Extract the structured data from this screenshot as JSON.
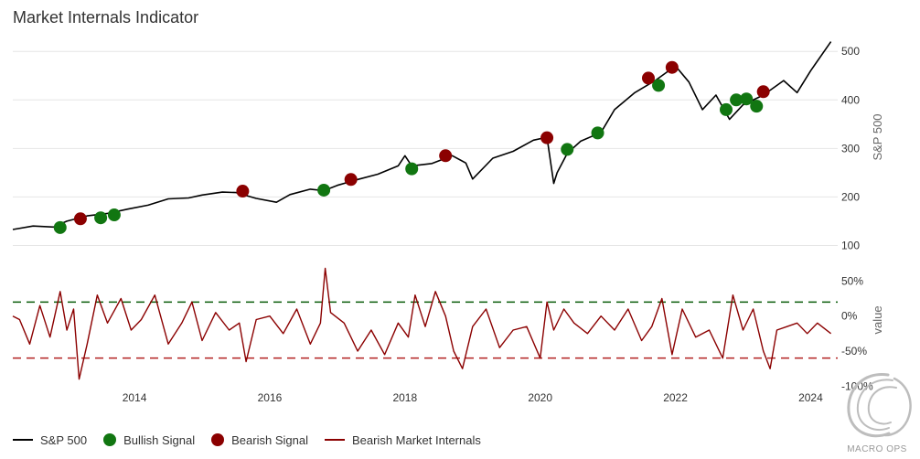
{
  "chart_data": {
    "type": "line",
    "title": "Market Internals Indicator",
    "x_axis": {
      "label": "",
      "range": [
        2012.2,
        2024.4
      ],
      "ticks": [
        "2014",
        "2016",
        "2018",
        "2020",
        "2022",
        "2024"
      ]
    },
    "panels": [
      {
        "name": "upper",
        "y_axis": {
          "label": "S&P 500",
          "range": [
            50,
            540
          ],
          "ticks": [
            "500",
            "400",
            "300",
            "200",
            "100"
          ],
          "position": "right"
        },
        "series": [
          {
            "name": "S&P 500",
            "color": "#000000",
            "type": "line",
            "x": [
              2012.2,
              2012.5,
              2012.8,
              2013.0,
              2013.3,
              2013.6,
              2013.9,
              2014.2,
              2014.5,
              2014.8,
              2015.0,
              2015.3,
              2015.5,
              2015.8,
              2016.1,
              2016.3,
              2016.6,
              2016.8,
              2017.0,
              2017.3,
              2017.6,
              2017.9,
              2018.0,
              2018.1,
              2018.4,
              2018.7,
              2018.9,
              2019.0,
              2019.3,
              2019.6,
              2019.9,
              2020.1,
              2020.2,
              2020.25,
              2020.4,
              2020.6,
              2020.9,
              2021.1,
              2021.4,
              2021.7,
              2022.0,
              2022.2,
              2022.4,
              2022.6,
              2022.8,
              2023.0,
              2023.3,
              2023.6,
              2023.8,
              2024.0,
              2024.3
            ],
            "y": [
              133,
              140,
              138,
              150,
              161,
              166,
              175,
              183,
              196,
              198,
              204,
              210,
              209,
              197,
              189,
              205,
              216,
              213,
              224,
              236,
              247,
              264,
              285,
              264,
              269,
              285,
              270,
              237,
              280,
              294,
              317,
              323,
              228,
              250,
              290,
              315,
              333,
              380,
              415,
              440,
              470,
              437,
              380,
              410,
              360,
              390,
              410,
              440,
              415,
              460,
              520
            ]
          },
          {
            "name": "Bullish Signal",
            "color": "#117611",
            "type": "scatter",
            "x": [
              2012.9,
              2013.5,
              2013.7,
              2016.8,
              2018.1,
              2020.4,
              2020.85,
              2021.75,
              2022.75,
              2022.9,
              2023.05,
              2023.2
            ],
            "y": [
              137,
              157,
              163,
              214,
              258,
              298,
              332,
              430,
              380,
              400,
              402,
              387
            ]
          },
          {
            "name": "Bearish Signal",
            "color": "#8b0000",
            "type": "scatter",
            "x": [
              2013.2,
              2015.6,
              2017.2,
              2018.6,
              2020.1,
              2021.6,
              2021.95,
              2023.3
            ],
            "y": [
              155,
              212,
              236,
              285,
              322,
              445,
              467,
              417
            ]
          }
        ]
      },
      {
        "name": "lower",
        "y_axis": {
          "label": "value",
          "range": [
            -110,
            70
          ],
          "ticks": [
            "50%",
            "0%",
            "-50%",
            "-100%"
          ],
          "position": "right"
        },
        "reference_lines": [
          {
            "value": 20,
            "color": "#0a5c0a",
            "style": "dashed"
          },
          {
            "value": -60,
            "color": "#b22222",
            "style": "dashed"
          }
        ],
        "series": [
          {
            "name": "Bearish Market Internals",
            "color": "#8b0000",
            "type": "line",
            "x": [
              2012.2,
              2012.3,
              2012.45,
              2012.6,
              2012.75,
              2012.9,
              2013.0,
              2013.1,
              2013.18,
              2013.3,
              2013.45,
              2013.6,
              2013.8,
              2013.95,
              2014.1,
              2014.3,
              2014.5,
              2014.7,
              2014.85,
              2015.0,
              2015.2,
              2015.4,
              2015.55,
              2015.65,
              2015.8,
              2016.0,
              2016.2,
              2016.4,
              2016.6,
              2016.75,
              2016.82,
              2016.9,
              2017.1,
              2017.3,
              2017.5,
              2017.7,
              2017.9,
              2018.05,
              2018.15,
              2018.3,
              2018.45,
              2018.6,
              2018.72,
              2018.85,
              2019.0,
              2019.2,
              2019.4,
              2019.6,
              2019.8,
              2020.0,
              2020.1,
              2020.2,
              2020.35,
              2020.5,
              2020.7,
              2020.9,
              2021.1,
              2021.3,
              2021.5,
              2021.65,
              2021.8,
              2021.95,
              2022.1,
              2022.3,
              2022.5,
              2022.7,
              2022.85,
              2023.0,
              2023.15,
              2023.3,
              2023.4,
              2023.5,
              2023.65,
              2023.8,
              2023.95,
              2024.1,
              2024.3
            ],
            "y": [
              0,
              -5,
              -40,
              15,
              -30,
              35,
              -20,
              10,
              -90,
              -40,
              30,
              -10,
              25,
              -20,
              -5,
              30,
              -40,
              -10,
              20,
              -35,
              5,
              -20,
              -10,
              -65,
              -5,
              0,
              -25,
              10,
              -40,
              -10,
              68,
              5,
              -10,
              -50,
              -20,
              -55,
              -10,
              -30,
              30,
              -15,
              35,
              0,
              -50,
              -75,
              -15,
              10,
              -45,
              -20,
              -15,
              -60,
              20,
              -20,
              10,
              -10,
              -25,
              0,
              -20,
              10,
              -35,
              -15,
              25,
              -55,
              10,
              -30,
              -20,
              -60,
              30,
              -20,
              10,
              -50,
              -75,
              -20,
              -15,
              -10,
              -25,
              -10,
              -25
            ]
          }
        ]
      }
    ],
    "legend": {
      "placement": "bottom-left"
    },
    "grid": true,
    "colors": {
      "sp500": "#000000",
      "bullish": "#117611",
      "bearish": "#8b0000",
      "internals": "#8b0000",
      "upper_ref": "#0a5c0a",
      "lower_ref": "#b22222"
    }
  },
  "legend_labels": {
    "sp500": "S&P 500",
    "bullish": "Bullish Signal",
    "bearish": "Bearish Signal",
    "internals": "Bearish Market Internals"
  },
  "watermark": {
    "text": "MACRO OPS"
  }
}
